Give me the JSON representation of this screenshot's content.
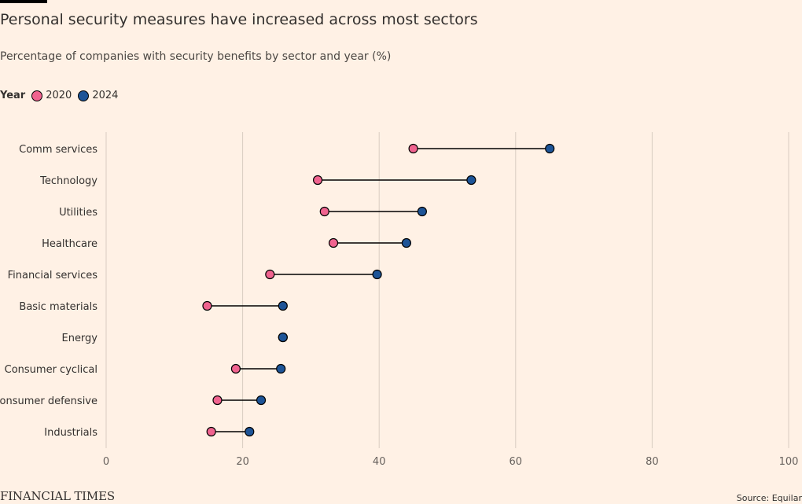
{
  "title": "Personal security measures have increased across most sectors",
  "subtitle": "Percentage of companies with security benefits by sector and year (%)",
  "legend": {
    "title": "Year",
    "items": [
      {
        "label": "2020",
        "color": "#F0638F"
      },
      {
        "label": "2024",
        "color": "#1D5497"
      }
    ]
  },
  "footer": {
    "logo": "FINANCIAL TIMES",
    "source": "Source: Equilar"
  },
  "chart_data": {
    "type": "dumbbell",
    "categories": [
      "Comm services",
      "Technology",
      "Utilities",
      "Healthcare",
      "Financial services",
      "Basic materials",
      "Energy",
      "Consumer cyclical",
      "Consumer defensive",
      "Industrials"
    ],
    "series": [
      {
        "name": "2020",
        "color": "#F0638F",
        "values": [
          45,
          31,
          32,
          33.3,
          24,
          14.8,
          25.9,
          19,
          16.3,
          15.4
        ]
      },
      {
        "name": "2024",
        "color": "#1D5497",
        "values": [
          65,
          53.5,
          46.3,
          44,
          39.7,
          25.9,
          25.9,
          25.6,
          22.7,
          21
        ]
      }
    ],
    "xlim": [
      0,
      100
    ],
    "xticks": [
      0,
      20,
      40,
      60,
      80,
      100
    ],
    "grid": true
  }
}
